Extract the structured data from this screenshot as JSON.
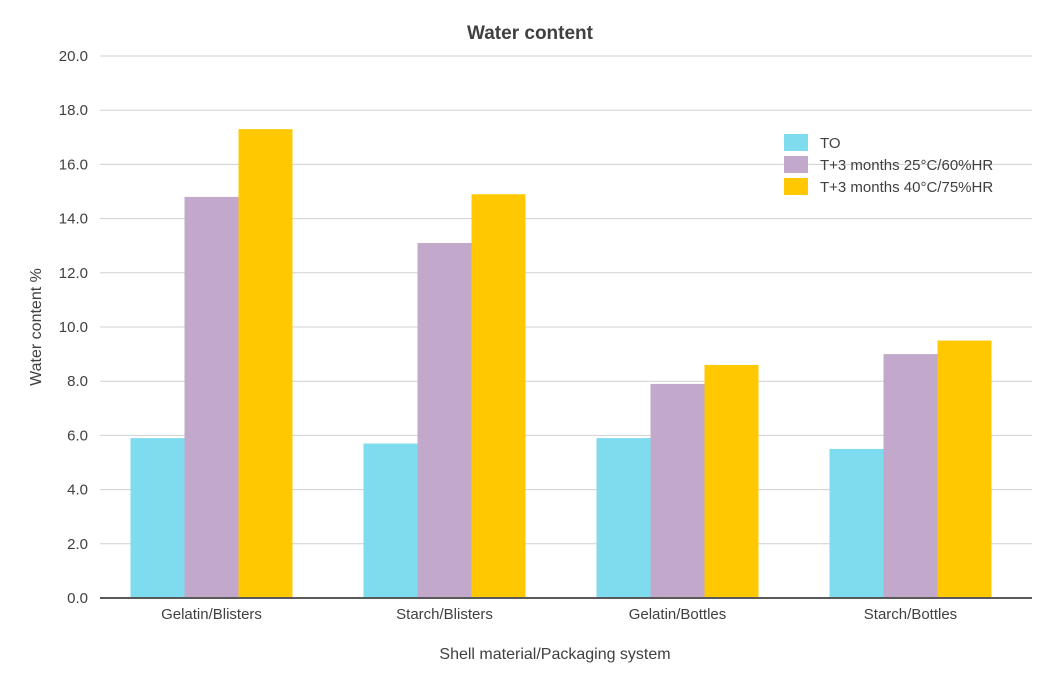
{
  "chart_data": {
    "type": "bar",
    "title": "Water content",
    "xlabel": "Shell material/Packaging system",
    "ylabel": "Water content %",
    "ylim": [
      0,
      20
    ],
    "y_ticks": [
      "0.0",
      "2.0",
      "4.0",
      "6.0",
      "8.0",
      "10.0",
      "12.0",
      "14.0",
      "16.0",
      "18.0",
      "20.0"
    ],
    "categories": [
      "Gelatin/Blisters",
      "Starch/Blisters",
      "Gelatin/Bottles",
      "Starch/Bottles"
    ],
    "series": [
      {
        "name": "TO",
        "color": "#7fdbee",
        "values": [
          5.9,
          5.7,
          5.9,
          5.5
        ]
      },
      {
        "name": "T+3 months 25°C/60%HR",
        "color": "#c2a9cb",
        "values": [
          14.8,
          13.1,
          7.9,
          9.0
        ]
      },
      {
        "name": "T+3 months 40°C/75%HR",
        "color": "#ffc800",
        "values": [
          17.3,
          14.9,
          8.6,
          9.5
        ]
      }
    ],
    "grid": true,
    "legend_position": "top-right"
  }
}
